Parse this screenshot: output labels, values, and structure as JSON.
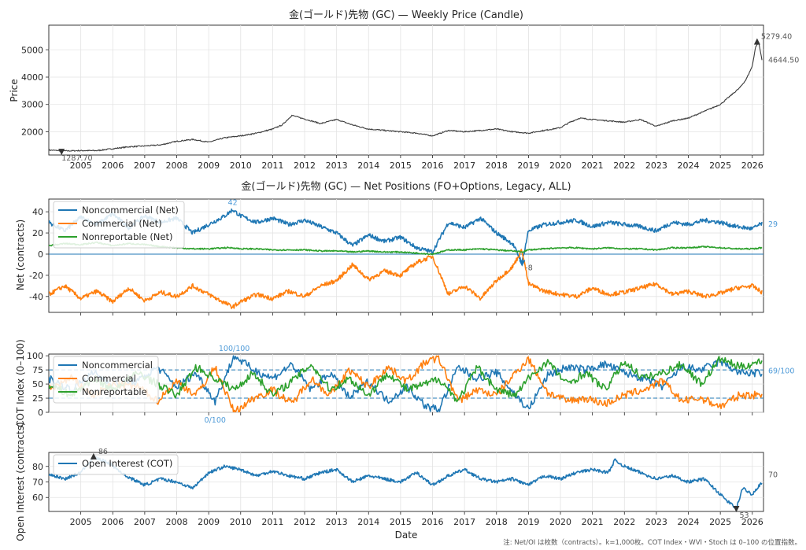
{
  "colors": {
    "blue": "#1f77b4",
    "orange": "#ff7f0e",
    "green": "#2ca02c",
    "dark": "#3a3a3a",
    "annot_blue": "#4f9bd8"
  },
  "x_years": [
    "2005",
    "2006",
    "2007",
    "2008",
    "2009",
    "2010",
    "2011",
    "2012",
    "2013",
    "2014",
    "2015",
    "2016",
    "2017",
    "2018",
    "2019",
    "2020",
    "2021",
    "2022",
    "2023",
    "2024",
    "2025",
    "2026"
  ],
  "x_range": [
    2004.0,
    2026.35
  ],
  "xlabel": "Date",
  "footnote": "注: Net/OI は枚数（contracts）。k=1,000枚。COT Index・WVI・Stoch は 0–100 の位置指数。",
  "chart_data": [
    {
      "type": "line",
      "title": "金(ゴールド)先物 (GC) — Weekly Price (Candle)",
      "xlabel": "",
      "ylabel": "Price",
      "ylim": [
        1150,
        5900
      ],
      "yticks": [
        2000,
        3000,
        4000,
        5000
      ],
      "grid": true,
      "x": [
        2004.0,
        2004.5,
        2005.0,
        2005.5,
        2006.0,
        2006.5,
        2007.0,
        2007.5,
        2008.0,
        2008.5,
        2009.0,
        2009.5,
        2010.0,
        2010.5,
        2011.0,
        2011.3,
        2011.6,
        2011.9,
        2012.5,
        2013.0,
        2013.5,
        2014.0,
        2014.5,
        2015.0,
        2015.5,
        2016.0,
        2016.5,
        2017.0,
        2017.5,
        2018.0,
        2018.5,
        2019.0,
        2019.5,
        2020.0,
        2020.3,
        2020.6,
        2021.0,
        2021.5,
        2022.0,
        2022.5,
        2023.0,
        2023.5,
        2024.0,
        2024.5,
        2025.0,
        2025.3,
        2025.6,
        2025.8,
        2026.0,
        2026.1,
        2026.2,
        2026.3
      ],
      "y": [
        1330,
        1300,
        1310,
        1310,
        1380,
        1450,
        1480,
        1520,
        1650,
        1720,
        1620,
        1780,
        1850,
        1950,
        2100,
        2250,
        2600,
        2500,
        2300,
        2450,
        2250,
        2100,
        2050,
        2000,
        1950,
        1850,
        2050,
        2000,
        2050,
        2100,
        2000,
        1950,
        2050,
        2150,
        2350,
        2500,
        2450,
        2400,
        2350,
        2450,
        2200,
        2400,
        2500,
        2750,
        3000,
        3300,
        3600,
        3900,
        4400,
        5100,
        5279,
        4644
      ],
      "annotations": {
        "max_label": "5279.40",
        "last_label": "4644.50",
        "min_label": "1287.70"
      }
    },
    {
      "type": "line",
      "title": "金(ゴールド)先物 (GC) — Net Positions (FO+Options, Legacy, ALL)",
      "xlabel": "",
      "ylabel": "Net (contracts)",
      "ylim": [
        -55,
        52
      ],
      "yticks": [
        -40,
        -20,
        0,
        20,
        40
      ],
      "grid": true,
      "legend": "top-left",
      "x": [
        2004.0,
        2004.5,
        2005.0,
        2005.5,
        2006.0,
        2006.5,
        2007.0,
        2007.5,
        2008.0,
        2008.5,
        2009.0,
        2009.5,
        2009.75,
        2010.0,
        2010.5,
        2011.0,
        2011.5,
        2012.0,
        2012.5,
        2013.0,
        2013.5,
        2014.0,
        2014.5,
        2015.0,
        2015.5,
        2016.0,
        2016.5,
        2017.0,
        2017.5,
        2018.0,
        2018.5,
        2018.8,
        2019.0,
        2019.5,
        2020.0,
        2020.5,
        2021.0,
        2021.5,
        2022.0,
        2022.5,
        2023.0,
        2023.5,
        2024.0,
        2024.5,
        2025.0,
        2025.5,
        2026.0,
        2026.3
      ],
      "series": [
        {
          "name": "Noncommercial (Net)",
          "color": "#1f77b4",
          "values": [
            30,
            22,
            35,
            28,
            38,
            25,
            36,
            30,
            34,
            20,
            28,
            36,
            42,
            36,
            30,
            34,
            28,
            32,
            26,
            20,
            8,
            18,
            12,
            16,
            6,
            2,
            30,
            25,
            34,
            20,
            10,
            -8,
            22,
            28,
            30,
            32,
            26,
            30,
            28,
            26,
            22,
            30,
            28,
            32,
            30,
            26,
            24,
            29
          ]
        },
        {
          "name": "Commercial (Net)",
          "color": "#ff7f0e",
          "values": [
            -38,
            -30,
            -42,
            -35,
            -45,
            -32,
            -44,
            -36,
            -40,
            -30,
            -38,
            -46,
            -50,
            -45,
            -38,
            -42,
            -35,
            -40,
            -30,
            -25,
            -10,
            -24,
            -16,
            -20,
            -8,
            -2,
            -38,
            -30,
            -42,
            -25,
            -12,
            4,
            -28,
            -35,
            -38,
            -40,
            -32,
            -38,
            -36,
            -32,
            -28,
            -38,
            -35,
            -40,
            -37,
            -32,
            -30,
            -36
          ]
        },
        {
          "name": "Nonreportable (Net)",
          "color": "#2ca02c",
          "values": [
            8,
            10,
            9,
            11,
            8,
            10,
            9,
            7,
            6,
            5,
            5,
            6,
            6,
            5,
            5,
            4,
            4,
            4,
            3,
            3,
            2,
            3,
            2,
            2,
            1,
            0,
            4,
            4,
            5,
            4,
            3,
            2,
            4,
            5,
            6,
            6,
            5,
            6,
            5,
            5,
            4,
            6,
            6,
            7,
            6,
            5,
            5,
            6
          ]
        }
      ],
      "annotations": {
        "max_label": "42",
        "min_label": "-8",
        "last_label": "29"
      }
    },
    {
      "type": "line",
      "title": "",
      "xlabel": "",
      "ylabel": "COT Index (0–100)",
      "ylim": [
        0,
        103
      ],
      "yticks": [
        0,
        25,
        50,
        75,
        100
      ],
      "reference_lines": [
        25,
        75
      ],
      "grid": true,
      "legend": "top-left",
      "x": [
        2004.0,
        2004.7,
        2005.4,
        2006.0,
        2006.8,
        2007.4,
        2008.0,
        2008.6,
        2009.2,
        2009.8,
        2010.4,
        2011.0,
        2011.6,
        2012.2,
        2012.8,
        2013.4,
        2014.0,
        2014.6,
        2015.2,
        2015.8,
        2016.2,
        2016.8,
        2017.4,
        2018.0,
        2018.6,
        2019.0,
        2019.6,
        2020.2,
        2020.8,
        2021.4,
        2022.0,
        2022.6,
        2023.2,
        2023.8,
        2024.4,
        2025.0,
        2025.6,
        2026.3
      ],
      "series": [
        {
          "name": "Noncommercial",
          "color": "#1f77b4",
          "values": [
            60,
            40,
            70,
            50,
            55,
            80,
            45,
            70,
            20,
            100,
            75,
            60,
            85,
            40,
            70,
            25,
            55,
            20,
            45,
            10,
            5,
            80,
            60,
            70,
            30,
            5,
            65,
            80,
            75,
            85,
            70,
            60,
            45,
            80,
            75,
            90,
            70,
            69
          ]
        },
        {
          "name": "Commercial",
          "color": "#ff7f0e",
          "values": [
            40,
            60,
            30,
            50,
            45,
            20,
            55,
            30,
            80,
            0,
            25,
            40,
            15,
            60,
            30,
            75,
            45,
            80,
            55,
            90,
            95,
            20,
            40,
            30,
            70,
            95,
            35,
            20,
            25,
            15,
            30,
            40,
            55,
            20,
            25,
            10,
            30,
            31
          ]
        },
        {
          "name": "Nonreportable",
          "color": "#2ca02c",
          "values": [
            50,
            30,
            60,
            40,
            70,
            50,
            30,
            80,
            60,
            40,
            70,
            30,
            55,
            85,
            40,
            60,
            30,
            70,
            40,
            50,
            60,
            20,
            80,
            40,
            30,
            60,
            90,
            50,
            70,
            40,
            90,
            60,
            70,
            85,
            50,
            95,
            80,
            90
          ]
        }
      ],
      "annotations": {
        "max_label": "100/100",
        "min_label": "0/100",
        "last_label": "69/100"
      }
    },
    {
      "type": "line",
      "title": "",
      "xlabel": "Date",
      "ylabel": "Open Interest (contracts)",
      "ylim": [
        51,
        89
      ],
      "yticks": [
        60,
        70,
        80
      ],
      "grid": true,
      "legend": "top-left",
      "x": [
        2004.0,
        2004.5,
        2005.0,
        2005.4,
        2005.9,
        2006.4,
        2007.0,
        2007.5,
        2008.0,
        2008.5,
        2009.0,
        2009.5,
        2010.0,
        2010.5,
        2011.0,
        2011.5,
        2012.0,
        2012.5,
        2013.0,
        2013.5,
        2014.0,
        2014.5,
        2015.0,
        2015.5,
        2016.0,
        2016.5,
        2017.0,
        2017.5,
        2018.0,
        2018.5,
        2019.0,
        2019.5,
        2020.0,
        2020.5,
        2021.0,
        2021.5,
        2021.7,
        2022.0,
        2022.5,
        2023.0,
        2023.5,
        2024.0,
        2024.5,
        2025.0,
        2025.2,
        2025.5,
        2025.7,
        2026.0,
        2026.3
      ],
      "series": [
        {
          "name": "Open Interest (COT)",
          "color": "#1f77b4",
          "values": [
            75,
            72,
            76,
            86,
            82,
            74,
            68,
            72,
            70,
            66,
            76,
            80,
            78,
            74,
            77,
            74,
            72,
            76,
            78,
            70,
            74,
            72,
            70,
            76,
            68,
            74,
            78,
            72,
            70,
            72,
            68,
            74,
            72,
            76,
            78,
            76,
            84,
            80,
            76,
            72,
            74,
            70,
            72,
            62,
            58,
            53,
            66,
            62,
            70
          ]
        }
      ],
      "annotations": {
        "max_label": "86",
        "min_label": "53",
        "last_label": "70"
      }
    }
  ]
}
